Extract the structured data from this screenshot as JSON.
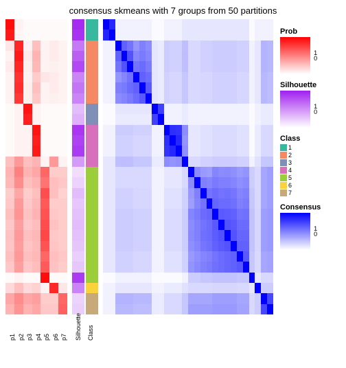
{
  "title": "consensus skmeans with 7 groups from 50 partitions",
  "plot": {
    "n_rows": 28,
    "prob_labels": [
      "p1",
      "p2",
      "p3",
      "p4",
      "p5",
      "p6",
      "p7"
    ],
    "sil_label": "Silhouette",
    "class_label": "Class",
    "prob": {
      "comment": "per row, intensity [0..1] for each of 7 p-columns",
      "rows": [
        [
          0.95,
          0.05,
          0.02,
          0.02,
          0.02,
          0.02,
          0.02
        ],
        [
          0.9,
          0.04,
          0.02,
          0.02,
          0.02,
          0.02,
          0.02
        ],
        [
          0.1,
          0.85,
          0.05,
          0.25,
          0.05,
          0.08,
          0.05
        ],
        [
          0.05,
          0.9,
          0.08,
          0.3,
          0.05,
          0.08,
          0.05
        ],
        [
          0.08,
          0.85,
          0.06,
          0.28,
          0.05,
          0.06,
          0.05
        ],
        [
          0.05,
          0.8,
          0.05,
          0.2,
          0.1,
          0.08,
          0.05
        ],
        [
          0.05,
          0.82,
          0.06,
          0.25,
          0.05,
          0.08,
          0.05
        ],
        [
          0.05,
          0.78,
          0.06,
          0.22,
          0.05,
          0.06,
          0.05
        ],
        [
          0.02,
          0.05,
          0.92,
          0.05,
          0.02,
          0.02,
          0.02
        ],
        [
          0.02,
          0.05,
          0.88,
          0.05,
          0.02,
          0.02,
          0.02
        ],
        [
          0.02,
          0.05,
          0.05,
          0.92,
          0.02,
          0.02,
          0.02
        ],
        [
          0.02,
          0.05,
          0.05,
          0.88,
          0.02,
          0.02,
          0.02
        ],
        [
          0.02,
          0.05,
          0.05,
          0.9,
          0.02,
          0.02,
          0.02
        ],
        [
          0.25,
          0.4,
          0.25,
          0.3,
          0.05,
          0.4,
          0.05
        ],
        [
          0.3,
          0.5,
          0.3,
          0.35,
          0.6,
          0.2,
          0.2
        ],
        [
          0.28,
          0.45,
          0.25,
          0.3,
          0.55,
          0.25,
          0.22
        ],
        [
          0.2,
          0.35,
          0.2,
          0.25,
          0.7,
          0.25,
          0.18
        ],
        [
          0.22,
          0.4,
          0.22,
          0.28,
          0.65,
          0.2,
          0.2
        ],
        [
          0.25,
          0.42,
          0.24,
          0.3,
          0.68,
          0.22,
          0.2
        ],
        [
          0.22,
          0.38,
          0.22,
          0.26,
          0.7,
          0.24,
          0.2
        ],
        [
          0.24,
          0.4,
          0.25,
          0.28,
          0.72,
          0.22,
          0.2
        ],
        [
          0.23,
          0.39,
          0.23,
          0.27,
          0.68,
          0.23,
          0.2
        ],
        [
          0.25,
          0.4,
          0.25,
          0.28,
          0.6,
          0.25,
          0.22
        ],
        [
          0.22,
          0.38,
          0.22,
          0.26,
          0.65,
          0.24,
          0.2
        ],
        [
          0.02,
          0.05,
          0.02,
          0.02,
          0.95,
          0.02,
          0.02
        ],
        [
          0.15,
          0.25,
          0.15,
          0.18,
          0.05,
          0.85,
          0.1
        ],
        [
          0.35,
          0.45,
          0.35,
          0.38,
          0.2,
          0.2,
          0.6
        ],
        [
          0.3,
          0.42,
          0.3,
          0.35,
          0.22,
          0.22,
          0.62
        ]
      ],
      "color_low": "#ffffff",
      "color_high": "#ff0000"
    },
    "silhouette": {
      "values": [
        0.95,
        0.92,
        0.6,
        0.72,
        0.82,
        0.55,
        0.62,
        0.55,
        0.3,
        0.35,
        0.9,
        0.85,
        0.88,
        0.45,
        0.15,
        0.2,
        0.3,
        0.25,
        0.28,
        0.3,
        0.28,
        0.26,
        0.22,
        0.25,
        0.88,
        0.55,
        0.2,
        0.22
      ],
      "color_low": "#ffffff",
      "color_high": "#a020f0"
    },
    "class": {
      "values": [
        1,
        1,
        2,
        2,
        2,
        2,
        2,
        2,
        3,
        3,
        4,
        4,
        4,
        4,
        5,
        5,
        5,
        5,
        5,
        5,
        5,
        5,
        5,
        5,
        5,
        6,
        7,
        7
      ],
      "colors": {
        "1": "#39b8a0",
        "2": "#f58964",
        "3": "#7f8fb8",
        "4": "#d86fbc",
        "5": "#9cce3a",
        "6": "#f9d23c",
        "7": "#c7a97a"
      },
      "labels": [
        "1",
        "2",
        "3",
        "4",
        "5",
        "6",
        "7"
      ]
    },
    "consensus": {
      "color_low": "#ffffff",
      "color_high": "#0000ff",
      "blocks_comment": "diagonal block intensities approximated",
      "rows": [
        [
          1.0,
          0.85,
          0.05,
          0.05,
          0.05,
          0.05,
          0.05,
          0.05,
          0.02,
          0.02,
          0.05,
          0.05,
          0.05,
          0.1,
          0.1,
          0.1,
          0.1,
          0.1,
          0.1,
          0.1,
          0.1,
          0.1,
          0.1,
          0.1,
          0.02,
          0.05,
          0.05,
          0.05
        ],
        [
          0.85,
          1.0,
          0.05,
          0.05,
          0.05,
          0.05,
          0.05,
          0.05,
          0.02,
          0.02,
          0.05,
          0.05,
          0.05,
          0.1,
          0.1,
          0.1,
          0.1,
          0.1,
          0.1,
          0.1,
          0.1,
          0.1,
          0.1,
          0.1,
          0.02,
          0.05,
          0.05,
          0.05
        ],
        [
          0.05,
          0.05,
          1.0,
          0.62,
          0.55,
          0.42,
          0.5,
          0.45,
          0.1,
          0.08,
          0.2,
          0.18,
          0.18,
          0.25,
          0.15,
          0.15,
          0.18,
          0.18,
          0.2,
          0.2,
          0.2,
          0.2,
          0.18,
          0.18,
          0.05,
          0.1,
          0.3,
          0.28
        ],
        [
          0.05,
          0.05,
          0.62,
          1.0,
          0.68,
          0.48,
          0.52,
          0.48,
          0.1,
          0.08,
          0.2,
          0.18,
          0.18,
          0.26,
          0.15,
          0.15,
          0.18,
          0.18,
          0.2,
          0.2,
          0.2,
          0.2,
          0.18,
          0.18,
          0.05,
          0.1,
          0.3,
          0.28
        ],
        [
          0.05,
          0.05,
          0.55,
          0.68,
          1.0,
          0.55,
          0.58,
          0.52,
          0.1,
          0.08,
          0.2,
          0.18,
          0.18,
          0.25,
          0.15,
          0.15,
          0.18,
          0.18,
          0.2,
          0.2,
          0.2,
          0.2,
          0.18,
          0.18,
          0.05,
          0.1,
          0.3,
          0.28
        ],
        [
          0.05,
          0.05,
          0.42,
          0.48,
          0.55,
          1.0,
          0.62,
          0.58,
          0.1,
          0.08,
          0.18,
          0.16,
          0.16,
          0.22,
          0.15,
          0.15,
          0.16,
          0.16,
          0.18,
          0.18,
          0.18,
          0.18,
          0.16,
          0.16,
          0.05,
          0.1,
          0.28,
          0.26
        ],
        [
          0.05,
          0.05,
          0.5,
          0.52,
          0.58,
          0.62,
          1.0,
          0.65,
          0.1,
          0.08,
          0.18,
          0.16,
          0.16,
          0.22,
          0.15,
          0.15,
          0.16,
          0.16,
          0.18,
          0.18,
          0.18,
          0.18,
          0.16,
          0.16,
          0.05,
          0.1,
          0.28,
          0.26
        ],
        [
          0.05,
          0.05,
          0.45,
          0.48,
          0.52,
          0.58,
          0.65,
          1.0,
          0.1,
          0.08,
          0.18,
          0.16,
          0.16,
          0.22,
          0.15,
          0.15,
          0.16,
          0.16,
          0.18,
          0.18,
          0.18,
          0.18,
          0.16,
          0.16,
          0.05,
          0.1,
          0.28,
          0.26
        ],
        [
          0.02,
          0.02,
          0.1,
          0.1,
          0.1,
          0.1,
          0.1,
          0.1,
          1.0,
          0.75,
          0.05,
          0.05,
          0.05,
          0.08,
          0.05,
          0.05,
          0.05,
          0.05,
          0.05,
          0.05,
          0.05,
          0.05,
          0.05,
          0.05,
          0.02,
          0.05,
          0.08,
          0.08
        ],
        [
          0.02,
          0.02,
          0.08,
          0.08,
          0.08,
          0.08,
          0.08,
          0.08,
          0.75,
          1.0,
          0.05,
          0.05,
          0.05,
          0.08,
          0.05,
          0.05,
          0.05,
          0.05,
          0.05,
          0.05,
          0.05,
          0.05,
          0.05,
          0.05,
          0.02,
          0.05,
          0.08,
          0.08
        ],
        [
          0.05,
          0.05,
          0.2,
          0.2,
          0.2,
          0.18,
          0.18,
          0.18,
          0.05,
          0.05,
          1.0,
          0.82,
          0.8,
          0.45,
          0.1,
          0.1,
          0.12,
          0.12,
          0.14,
          0.14,
          0.14,
          0.14,
          0.12,
          0.12,
          0.02,
          0.08,
          0.15,
          0.15
        ],
        [
          0.05,
          0.05,
          0.18,
          0.18,
          0.18,
          0.16,
          0.16,
          0.16,
          0.05,
          0.05,
          0.82,
          1.0,
          0.85,
          0.42,
          0.1,
          0.1,
          0.12,
          0.12,
          0.14,
          0.14,
          0.14,
          0.14,
          0.12,
          0.12,
          0.02,
          0.08,
          0.15,
          0.15
        ],
        [
          0.05,
          0.05,
          0.18,
          0.18,
          0.18,
          0.16,
          0.16,
          0.16,
          0.05,
          0.05,
          0.8,
          0.85,
          1.0,
          0.44,
          0.1,
          0.1,
          0.12,
          0.12,
          0.14,
          0.14,
          0.14,
          0.14,
          0.12,
          0.12,
          0.02,
          0.08,
          0.15,
          0.15
        ],
        [
          0.1,
          0.1,
          0.25,
          0.26,
          0.25,
          0.22,
          0.22,
          0.22,
          0.08,
          0.08,
          0.45,
          0.42,
          0.44,
          1.0,
          0.15,
          0.15,
          0.18,
          0.18,
          0.2,
          0.2,
          0.2,
          0.2,
          0.18,
          0.18,
          0.05,
          0.12,
          0.22,
          0.22
        ],
        [
          0.1,
          0.1,
          0.15,
          0.15,
          0.15,
          0.15,
          0.15,
          0.15,
          0.05,
          0.05,
          0.1,
          0.1,
          0.1,
          0.15,
          1.0,
          0.45,
          0.4,
          0.38,
          0.48,
          0.45,
          0.46,
          0.44,
          0.4,
          0.42,
          0.2,
          0.15,
          0.35,
          0.38
        ],
        [
          0.1,
          0.1,
          0.15,
          0.15,
          0.15,
          0.15,
          0.15,
          0.15,
          0.05,
          0.05,
          0.1,
          0.1,
          0.1,
          0.15,
          0.45,
          1.0,
          0.5,
          0.48,
          0.52,
          0.5,
          0.5,
          0.48,
          0.44,
          0.46,
          0.2,
          0.15,
          0.35,
          0.38
        ],
        [
          0.1,
          0.1,
          0.18,
          0.18,
          0.18,
          0.16,
          0.16,
          0.16,
          0.05,
          0.05,
          0.12,
          0.12,
          0.12,
          0.18,
          0.4,
          0.5,
          1.0,
          0.55,
          0.58,
          0.55,
          0.56,
          0.54,
          0.48,
          0.5,
          0.22,
          0.15,
          0.35,
          0.38
        ],
        [
          0.1,
          0.1,
          0.18,
          0.18,
          0.18,
          0.16,
          0.16,
          0.16,
          0.05,
          0.05,
          0.12,
          0.12,
          0.12,
          0.18,
          0.38,
          0.48,
          0.55,
          1.0,
          0.6,
          0.58,
          0.58,
          0.56,
          0.5,
          0.52,
          0.22,
          0.15,
          0.35,
          0.38
        ],
        [
          0.1,
          0.1,
          0.2,
          0.2,
          0.2,
          0.18,
          0.18,
          0.18,
          0.05,
          0.05,
          0.14,
          0.14,
          0.14,
          0.2,
          0.48,
          0.52,
          0.58,
          0.6,
          1.0,
          0.65,
          0.64,
          0.62,
          0.55,
          0.56,
          0.24,
          0.16,
          0.38,
          0.4
        ],
        [
          0.1,
          0.1,
          0.2,
          0.2,
          0.2,
          0.18,
          0.18,
          0.18,
          0.05,
          0.05,
          0.14,
          0.14,
          0.14,
          0.2,
          0.45,
          0.5,
          0.55,
          0.58,
          0.65,
          1.0,
          0.68,
          0.65,
          0.58,
          0.58,
          0.24,
          0.16,
          0.38,
          0.4
        ],
        [
          0.1,
          0.1,
          0.2,
          0.2,
          0.2,
          0.18,
          0.18,
          0.18,
          0.05,
          0.05,
          0.14,
          0.14,
          0.14,
          0.2,
          0.46,
          0.5,
          0.56,
          0.58,
          0.64,
          0.68,
          1.0,
          0.68,
          0.6,
          0.6,
          0.24,
          0.16,
          0.38,
          0.4
        ],
        [
          0.1,
          0.1,
          0.2,
          0.2,
          0.2,
          0.18,
          0.18,
          0.18,
          0.05,
          0.05,
          0.14,
          0.14,
          0.14,
          0.2,
          0.44,
          0.48,
          0.54,
          0.56,
          0.62,
          0.65,
          0.68,
          1.0,
          0.62,
          0.62,
          0.24,
          0.16,
          0.38,
          0.4
        ],
        [
          0.1,
          0.1,
          0.18,
          0.18,
          0.18,
          0.16,
          0.16,
          0.16,
          0.05,
          0.05,
          0.12,
          0.12,
          0.12,
          0.18,
          0.4,
          0.44,
          0.48,
          0.5,
          0.55,
          0.58,
          0.6,
          0.62,
          1.0,
          0.65,
          0.22,
          0.15,
          0.35,
          0.36
        ],
        [
          0.1,
          0.1,
          0.18,
          0.18,
          0.18,
          0.16,
          0.16,
          0.16,
          0.05,
          0.05,
          0.12,
          0.12,
          0.12,
          0.18,
          0.42,
          0.46,
          0.5,
          0.52,
          0.56,
          0.58,
          0.6,
          0.62,
          0.65,
          1.0,
          0.22,
          0.15,
          0.35,
          0.36
        ],
        [
          0.02,
          0.02,
          0.05,
          0.05,
          0.05,
          0.05,
          0.05,
          0.05,
          0.02,
          0.02,
          0.02,
          0.02,
          0.02,
          0.05,
          0.2,
          0.2,
          0.22,
          0.22,
          0.24,
          0.24,
          0.24,
          0.24,
          0.22,
          0.22,
          1.0,
          0.1,
          0.15,
          0.15
        ],
        [
          0.05,
          0.05,
          0.1,
          0.1,
          0.1,
          0.1,
          0.1,
          0.1,
          0.05,
          0.05,
          0.08,
          0.08,
          0.08,
          0.12,
          0.15,
          0.15,
          0.15,
          0.15,
          0.16,
          0.16,
          0.16,
          0.16,
          0.15,
          0.15,
          0.1,
          1.0,
          0.2,
          0.2
        ],
        [
          0.05,
          0.05,
          0.3,
          0.3,
          0.3,
          0.28,
          0.28,
          0.28,
          0.08,
          0.08,
          0.15,
          0.15,
          0.15,
          0.22,
          0.35,
          0.35,
          0.35,
          0.35,
          0.38,
          0.38,
          0.38,
          0.38,
          0.35,
          0.35,
          0.15,
          0.2,
          1.0,
          0.72
        ],
        [
          0.05,
          0.05,
          0.28,
          0.28,
          0.28,
          0.26,
          0.26,
          0.26,
          0.08,
          0.08,
          0.15,
          0.15,
          0.15,
          0.22,
          0.38,
          0.38,
          0.38,
          0.38,
          0.4,
          0.4,
          0.4,
          0.4,
          0.36,
          0.36,
          0.15,
          0.2,
          0.72,
          1.0
        ]
      ]
    }
  },
  "legends": {
    "prob": {
      "title": "Prob",
      "low": "#ffffff",
      "high": "#ff0000",
      "ticks": [
        "1",
        "0"
      ]
    },
    "sil": {
      "title": "Silhouette",
      "low": "#ffffff",
      "high": "#a020f0",
      "ticks": [
        "1",
        "0"
      ]
    },
    "class": {
      "title": "Class"
    },
    "cons": {
      "title": "Consensus",
      "low": "#ffffff",
      "high": "#0000ff",
      "ticks": [
        "1",
        "0"
      ]
    }
  }
}
